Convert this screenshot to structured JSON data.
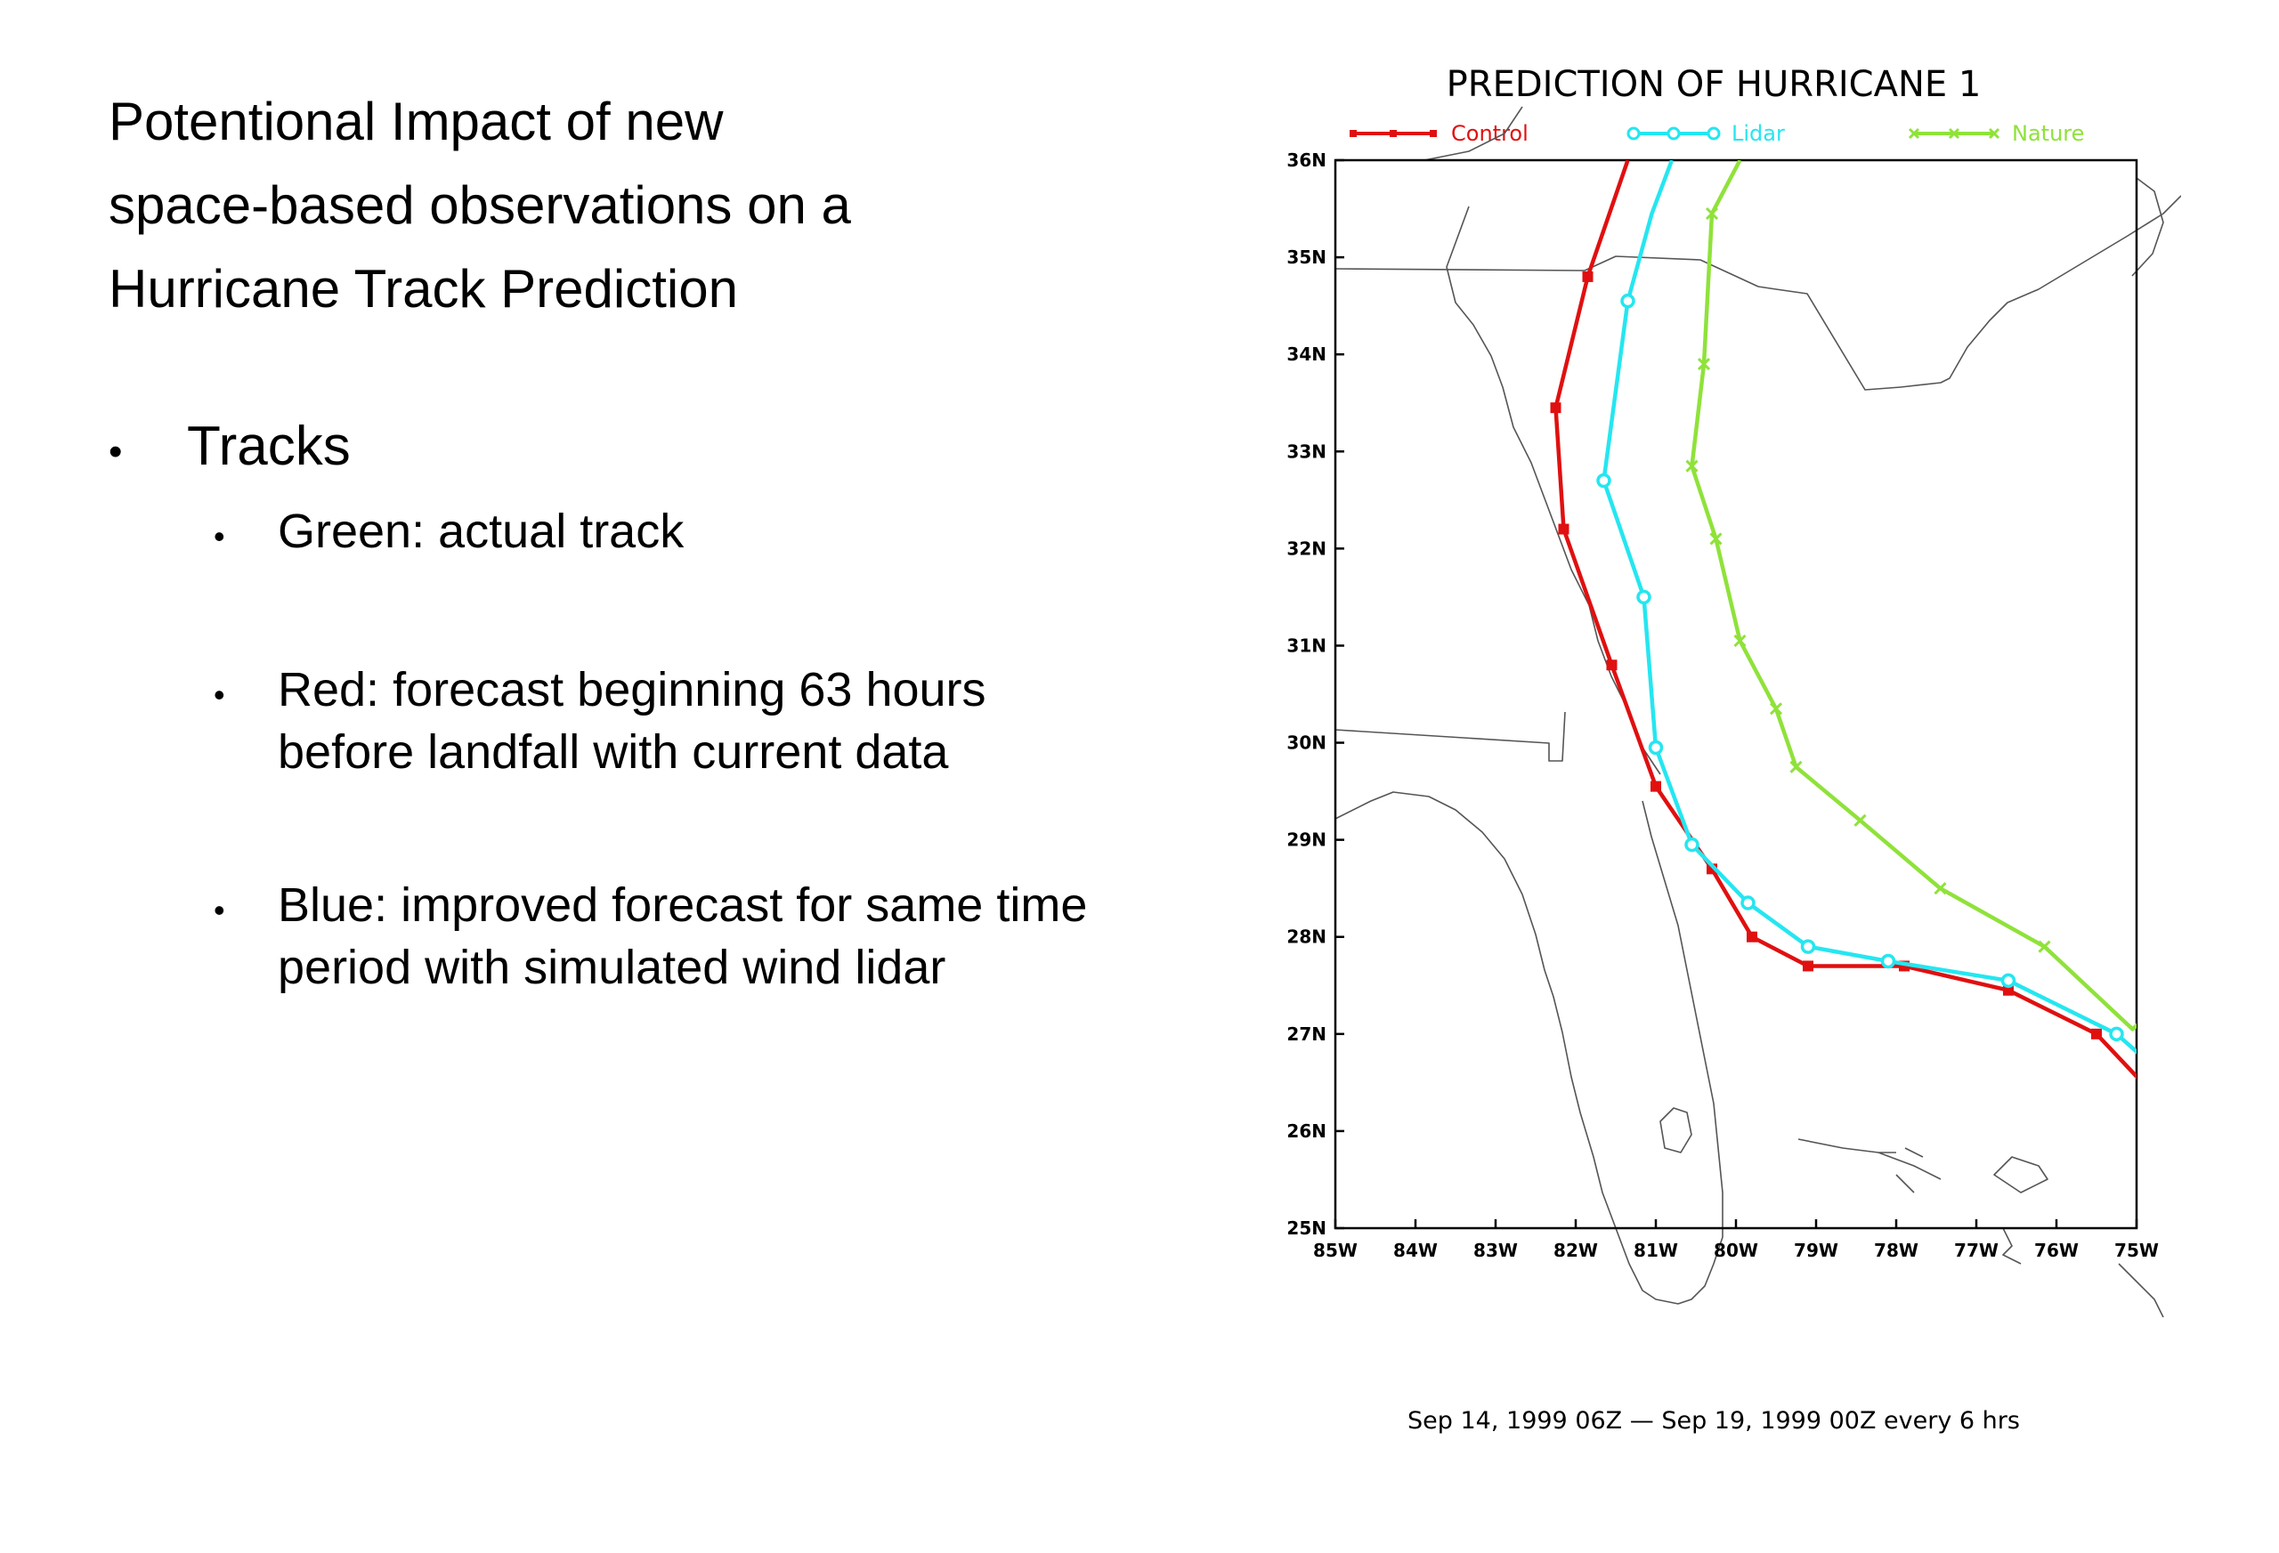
{
  "slide": {
    "title_lines": [
      "Potentional Impact of new",
      "space-based observations on a",
      "Hurricane Track Prediction"
    ],
    "bullet": "Tracks",
    "sub_bullets": [
      {
        "lines": [
          "Green: actual track"
        ]
      },
      {
        "lines": [
          "Red: forecast beginning 63 hours",
          "before landfall with current data"
        ]
      },
      {
        "lines": [
          "Blue: improved forecast for same time",
          "period with simulated wind lidar"
        ]
      }
    ]
  },
  "chart_data": {
    "type": "line",
    "title": "PREDICTION  OF  HURRICANE  1",
    "subtitle": "Sep  14,  1999  06Z   —   Sep  19,  1999  00Z  every  6  hrs",
    "xlim": [
      -85,
      -75
    ],
    "ylim": [
      25,
      36
    ],
    "x_ticks": [
      -85,
      -84,
      -83,
      -82,
      -81,
      -80,
      -79,
      -78,
      -77,
      -76,
      -75
    ],
    "x_tick_labels": [
      "85W",
      "84W",
      "83W",
      "82W",
      "81W",
      "80W",
      "79W",
      "78W",
      "77W",
      "76W",
      "75W"
    ],
    "y_ticks": [
      25,
      26,
      27,
      28,
      29,
      30,
      31,
      32,
      33,
      34,
      35,
      36
    ],
    "y_tick_labels": [
      "25N",
      "26N",
      "27N",
      "28N",
      "29N",
      "30N",
      "31N",
      "32N",
      "33N",
      "34N",
      "35N",
      "36N"
    ],
    "legend_position": "top",
    "series": [
      {
        "name": "Control",
        "color": "#e01010",
        "marker": "square",
        "points": [
          [
            -74.7,
            26.3
          ],
          [
            -75.5,
            27.0
          ],
          [
            -76.6,
            27.45
          ],
          [
            -77.9,
            27.7
          ],
          [
            -79.1,
            27.7
          ],
          [
            -79.8,
            28.0
          ],
          [
            -80.3,
            28.7
          ],
          [
            -81.0,
            29.55
          ],
          [
            -81.55,
            30.8
          ],
          [
            -82.15,
            32.2
          ],
          [
            -82.25,
            33.45
          ],
          [
            -81.85,
            34.8
          ],
          [
            -81.35,
            36.0
          ]
        ],
        "marked": [
          1,
          2,
          3,
          4,
          5,
          6,
          7,
          8,
          9,
          10,
          11
        ]
      },
      {
        "name": "Lidar",
        "color": "#25e6f0",
        "marker": "circle",
        "points": [
          [
            -74.7,
            26.6
          ],
          [
            -75.25,
            27.0
          ],
          [
            -76.6,
            27.55
          ],
          [
            -78.1,
            27.75
          ],
          [
            -79.1,
            27.9
          ],
          [
            -79.85,
            28.35
          ],
          [
            -80.55,
            28.95
          ],
          [
            -81.0,
            29.95
          ],
          [
            -81.15,
            31.5
          ],
          [
            -81.65,
            32.7
          ],
          [
            -81.35,
            34.55
          ],
          [
            -81.05,
            35.45
          ],
          [
            -80.8,
            36.0
          ]
        ],
        "marked": [
          1,
          2,
          3,
          4,
          5,
          6,
          7,
          8,
          9,
          10
        ]
      },
      {
        "name": "Nature",
        "color": "#8fe23a",
        "marker": "x",
        "points": [
          [
            -74.7,
            27.3
          ],
          [
            -75.05,
            27.05
          ],
          [
            -76.15,
            27.9
          ],
          [
            -77.45,
            28.5
          ],
          [
            -78.45,
            29.2
          ],
          [
            -79.25,
            29.75
          ],
          [
            -79.5,
            30.35
          ],
          [
            -79.95,
            31.05
          ],
          [
            -80.25,
            32.1
          ],
          [
            -80.55,
            32.85
          ],
          [
            -80.4,
            33.9
          ],
          [
            -80.3,
            35.45
          ],
          [
            -79.95,
            36.0
          ]
        ],
        "marked": [
          2,
          3,
          4,
          5,
          6,
          7,
          8,
          9,
          10,
          11
        ]
      }
    ]
  }
}
